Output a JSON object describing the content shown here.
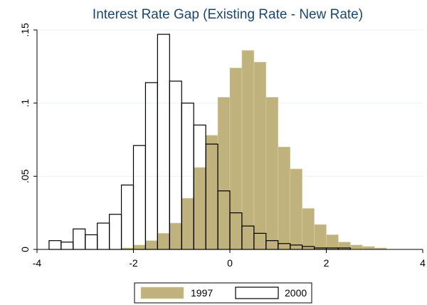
{
  "chart_data": {
    "type": "bar",
    "title": "Interest Rate Gap (Existing Rate - New Rate)",
    "xlabel": "",
    "ylabel": "",
    "xlim": [
      -4,
      4
    ],
    "ylim": [
      0,
      0.15
    ],
    "bin_width": 0.25,
    "x_ticks": [
      -4,
      -2,
      0,
      2,
      4
    ],
    "x_tick_labels": [
      "-4",
      "-2",
      "0",
      "2",
      "4"
    ],
    "y_ticks": [
      0,
      0.05,
      0.1,
      0.15
    ],
    "y_tick_labels": [
      "0",
      ".05",
      ".1",
      ".15"
    ],
    "grid": true,
    "legend_position": "bottom",
    "series": [
      {
        "name": "1997",
        "color": "#c0b27c",
        "style": "filled",
        "bin_starts": [
          -4.0,
          -3.75,
          -3.5,
          -3.25,
          -3.0,
          -2.75,
          -2.5,
          -2.25,
          -2.0,
          -1.75,
          -1.5,
          -1.25,
          -1.0,
          -0.75,
          -0.5,
          -0.25,
          0.0,
          0.25,
          0.5,
          0.75,
          1.0,
          1.25,
          1.5,
          1.75,
          2.0,
          2.25,
          2.5,
          2.75,
          3.0,
          3.25,
          3.5,
          3.75
        ],
        "values": [
          0.0,
          0.0,
          0.0,
          0.0,
          0.0,
          0.0,
          0.0,
          0.001,
          0.003,
          0.006,
          0.011,
          0.018,
          0.035,
          0.056,
          0.078,
          0.104,
          0.124,
          0.136,
          0.128,
          0.104,
          0.07,
          0.055,
          0.028,
          0.017,
          0.01,
          0.005,
          0.003,
          0.002,
          0.001,
          0.0,
          0.0,
          0.0
        ]
      },
      {
        "name": "2000",
        "color": "#000000",
        "style": "outline",
        "bin_starts": [
          -4.0,
          -3.75,
          -3.5,
          -3.25,
          -3.0,
          -2.75,
          -2.5,
          -2.25,
          -2.0,
          -1.75,
          -1.5,
          -1.25,
          -1.0,
          -0.75,
          -0.5,
          -0.25,
          0.0,
          0.25,
          0.5,
          0.75,
          1.0,
          1.25,
          1.5,
          1.75,
          2.0,
          2.25,
          2.5,
          2.75,
          3.0,
          3.25,
          3.5,
          3.75
        ],
        "values": [
          0.0,
          0.006,
          0.005,
          0.014,
          0.01,
          0.018,
          0.024,
          0.044,
          0.071,
          0.114,
          0.147,
          0.115,
          0.1,
          0.085,
          0.072,
          0.04,
          0.025,
          0.016,
          0.011,
          0.006,
          0.004,
          0.003,
          0.002,
          0.001,
          0.001,
          0.001,
          0.0,
          0.0,
          0.0,
          0.0,
          0.0,
          0.0
        ]
      }
    ]
  }
}
